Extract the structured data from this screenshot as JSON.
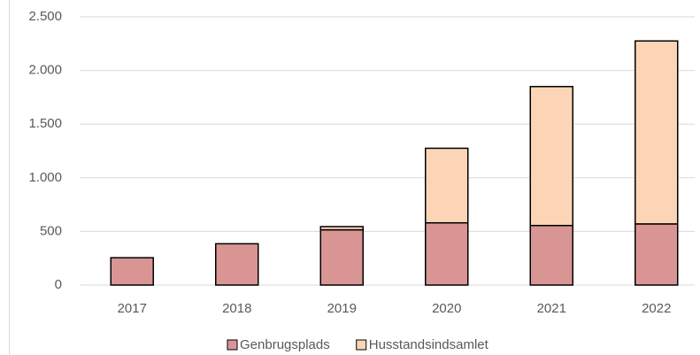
{
  "chart_data": {
    "type": "stacked_bar",
    "categories": [
      "2017",
      "2018",
      "2019",
      "2020",
      "2021",
      "2022"
    ],
    "series": [
      {
        "name": "Genbrugsplads",
        "color": "#d99594",
        "values": [
          255,
          385,
          515,
          580,
          555,
          570
        ]
      },
      {
        "name": "Husstandsindsamlet",
        "color": "#fbd5b5",
        "values": [
          0,
          0,
          30,
          695,
          1295,
          1705
        ]
      }
    ],
    "ylim": [
      0,
      2500
    ],
    "yticks": [
      0,
      500,
      {
        "value": 1000,
        "label": "1.000"
      },
      {
        "value": 1500,
        "label": "1.500"
      },
      {
        "value": 2000,
        "label": "2.000"
      },
      {
        "value": 2500,
        "label": "2.500"
      }
    ],
    "grid": true,
    "legend": "bottom"
  }
}
